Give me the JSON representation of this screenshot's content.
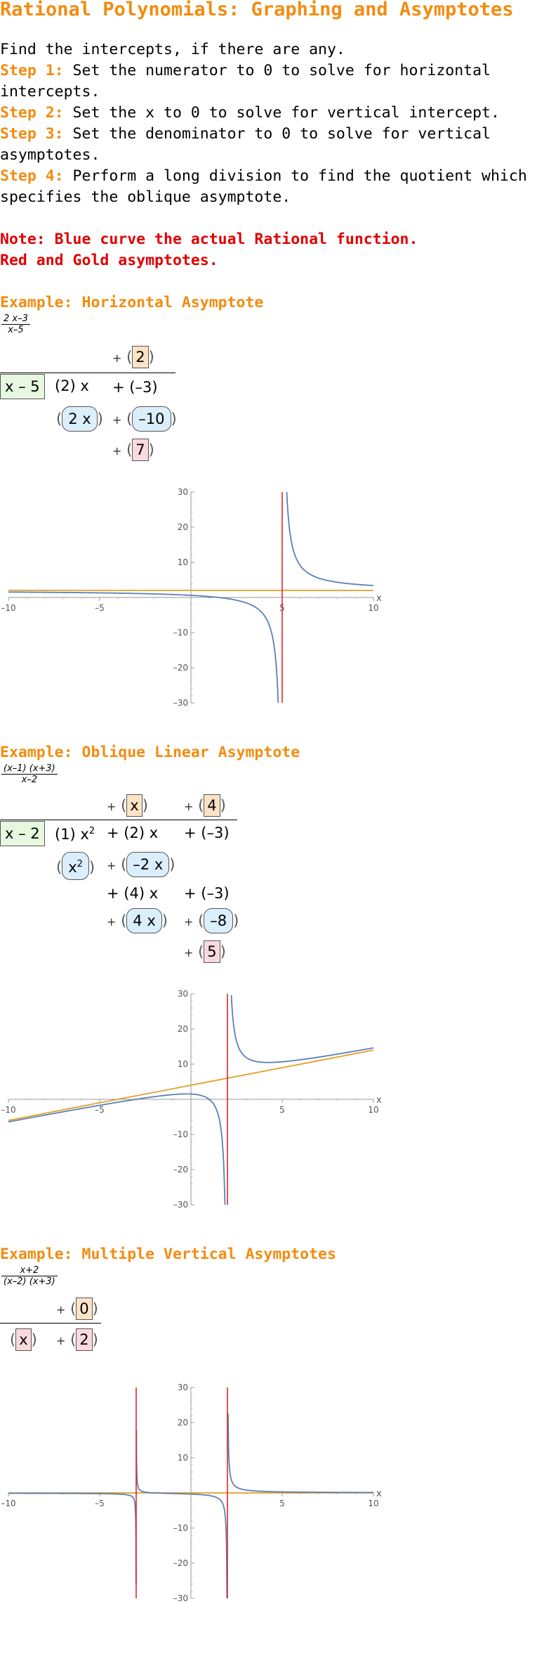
{
  "title": "Rational Polynomials: Graphing and Asymptotes",
  "intro": "Find the intercepts, if there are any.",
  "steps": [
    {
      "label": "Step 1:",
      "line1": " Set the numerator to 0 to solve for horizontal",
      "line2": "intercepts."
    },
    {
      "label": "Step 2:",
      "line1": " Set the x to 0 to solve for vertical intercept.",
      "line2": ""
    },
    {
      "label": "Step 3:",
      "line1": " Set the denominator to 0 to solve for vertical",
      "line2": "asymptotes."
    },
    {
      "label": "Step 4:",
      "line1": " Perform a long division to find the quotient which",
      "line2": "specifies the oblique asymptote."
    }
  ],
  "note": {
    "line1": "Note: Blue curve the actual Rational function.",
    "line2": "Red and Gold asymptotes."
  },
  "colors": {
    "accent": "#f28c10",
    "note": "#e00000",
    "curve": "#5b80b8",
    "vertical_asym": "#e0262a",
    "other_asym": "#e0a12a"
  },
  "examples": [
    {
      "heading": "Example: Horizontal Asymptote",
      "frac_num": "2 x–3",
      "frac_den": "x–5",
      "division": {
        "quotient": [
          "2"
        ],
        "divisor": "x – 5",
        "row1": [
          "(2) x",
          "+ (–3)"
        ],
        "row2": [
          "2 x",
          "–10"
        ],
        "remainder": "7"
      }
    },
    {
      "heading": "Example: Oblique Linear Asymptote",
      "frac_num": "(x–1) (x+3)",
      "frac_den": "x–2",
      "division": {
        "quotient": [
          "x",
          "4"
        ],
        "divisor": "x – 2",
        "row1": [
          "(1) x",
          "2",
          "+ (2) x",
          "+ (–3)"
        ],
        "row2": [
          "x",
          "2",
          "–2 x"
        ],
        "row3": [
          "+ (4) x",
          "+ (–3)"
        ],
        "row4": [
          "4 x",
          "–8"
        ],
        "remainder": "5"
      }
    },
    {
      "heading": "Example: Multiple Vertical Asymptotes",
      "frac_num": "x+2",
      "frac_den": "(x–2) (x+3)",
      "division": {
        "quotient": [
          "0"
        ],
        "divisor": "x",
        "row1": [
          "2"
        ]
      }
    }
  ],
  "chart_data": [
    {
      "type": "line",
      "function": "(2x-3)/(x-5)",
      "xlim": [
        -10,
        10
      ],
      "ylim": [
        -30,
        30
      ],
      "xticks": [
        "–10",
        "–5",
        "5",
        "10"
      ],
      "yticks": [
        "30",
        "20",
        "10",
        "–10",
        "–20",
        "–30"
      ],
      "xlabel": "x",
      "vertical_asymptotes": [
        5
      ],
      "other_asymptote": {
        "slope": 0,
        "intercept": 2
      }
    },
    {
      "type": "line",
      "function": "(x-1)(x+3)/(x-2)",
      "xlim": [
        -10,
        10
      ],
      "ylim": [
        -30,
        30
      ],
      "xticks": [
        "–10",
        "–5",
        "5",
        "10"
      ],
      "yticks": [
        "30",
        "20",
        "10",
        "–10",
        "–20",
        "–30"
      ],
      "xlabel": "x",
      "vertical_asymptotes": [
        2
      ],
      "other_asymptote": {
        "slope": 1,
        "intercept": 4
      }
    },
    {
      "type": "line",
      "function": "(x+2)/((x-2)(x+3))",
      "xlim": [
        -10,
        10
      ],
      "ylim": [
        -30,
        30
      ],
      "xticks": [
        "–10",
        "–5",
        "5",
        "10"
      ],
      "yticks": [
        "30",
        "20",
        "10",
        "–10",
        "–20",
        "–30"
      ],
      "xlabel": "x",
      "vertical_asymptotes": [
        -3,
        2
      ],
      "other_asymptote": {
        "slope": 0,
        "intercept": 0
      }
    }
  ]
}
